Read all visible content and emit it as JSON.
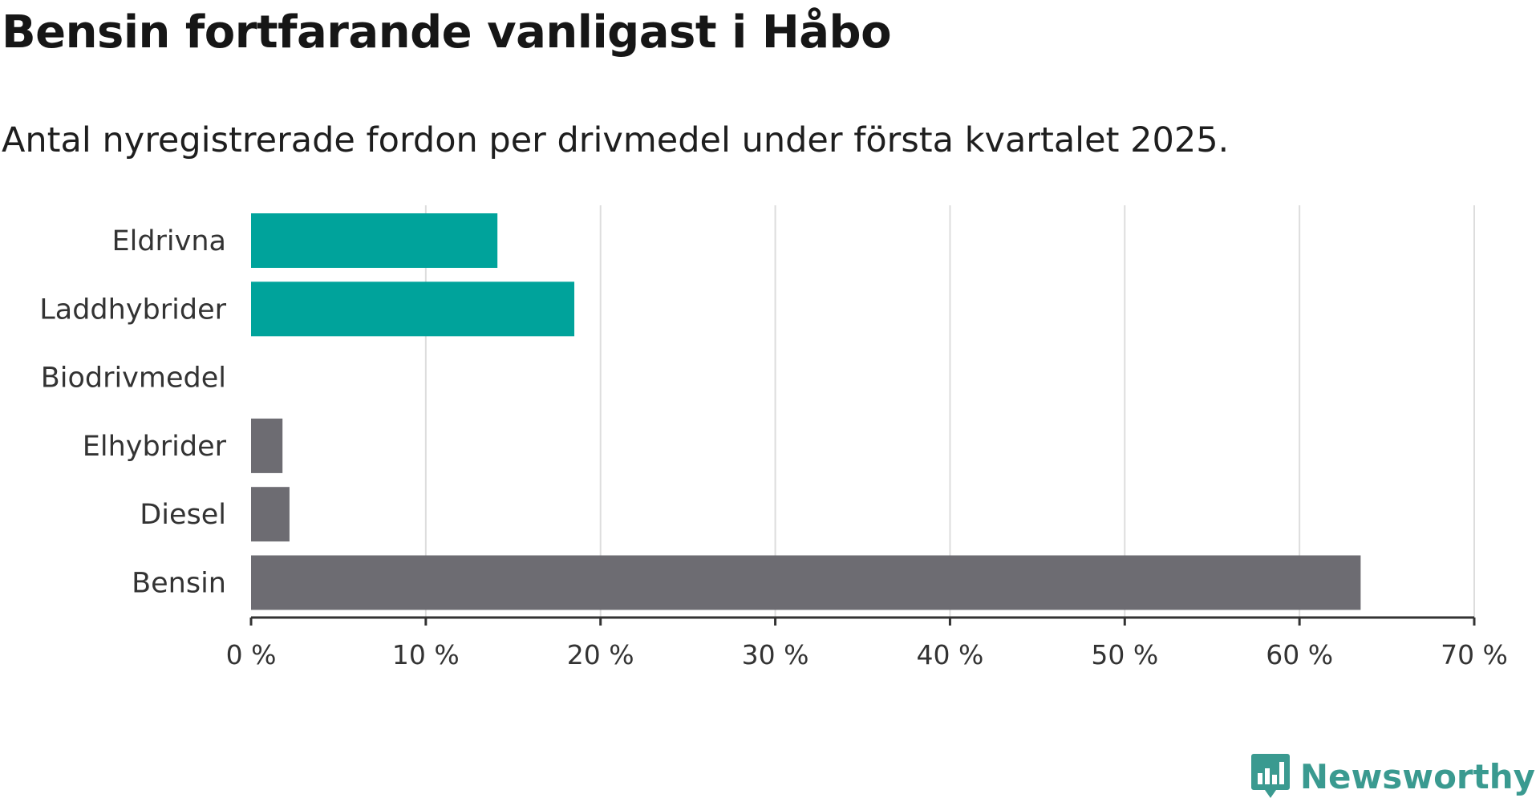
{
  "title": "Bensin fortfarande vanligast i Håbo",
  "subtitle": "Antal nyregistrerade fordon per drivmedel under första kvartalet 2025.",
  "brand": {
    "name": "Newsworthy",
    "color": "#3a9a90",
    "icon": "newsworthy-logo-icon"
  },
  "colors": {
    "highlight": "#00a39b",
    "other": "#6d6c72",
    "grid": "#dddddd",
    "axis": "#333333"
  },
  "chart_data": {
    "type": "bar",
    "orientation": "horizontal",
    "title": "Bensin fortfarande vanligast i Håbo",
    "subtitle": "Antal nyregistrerade fordon per drivmedel under första kvartalet 2025.",
    "categories": [
      "Eldrivna",
      "Laddhybrider",
      "Biodrivmedel",
      "Elhybrider",
      "Diesel",
      "Bensin"
    ],
    "values": [
      14.1,
      18.5,
      0,
      1.8,
      2.2,
      63.5
    ],
    "value_unit": "%",
    "highlighted": [
      true,
      true,
      false,
      false,
      false,
      false
    ],
    "xlim": [
      0,
      70
    ],
    "xticks": [
      0,
      10,
      20,
      30,
      40,
      50,
      60,
      70
    ],
    "xtick_labels": [
      "0 %",
      "10 %",
      "20 %",
      "30 %",
      "40 %",
      "50 %",
      "60 %",
      "70 %"
    ],
    "xlabel": "",
    "ylabel": "",
    "grid": "vertical",
    "legend": "none"
  }
}
